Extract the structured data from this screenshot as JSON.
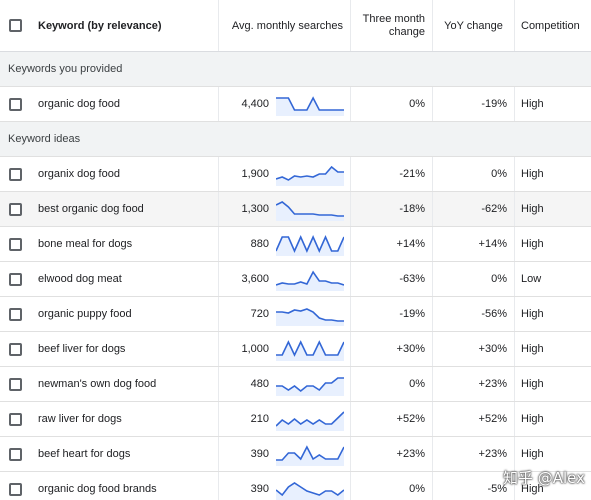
{
  "header": {
    "keyword": "Keyword (by relevance)",
    "avg": "Avg. monthly searches",
    "three_month": "Three month change",
    "yoy": "YoY change",
    "competition": "Competition"
  },
  "sections": {
    "provided": "Keywords you provided",
    "ideas": "Keyword ideas"
  },
  "provided_rows": [
    {
      "keyword": "organic dog food",
      "avg": "4,400",
      "three_month": "0%",
      "yoy": "-19%",
      "competition": "High",
      "trend": [
        0.8,
        0.8,
        0.8,
        0.2,
        0.2,
        0.2,
        0.8,
        0.2,
        0.2,
        0.2,
        0.2,
        0.2
      ]
    }
  ],
  "idea_rows": [
    {
      "keyword": "organix dog food",
      "avg": "1,900",
      "three_month": "-21%",
      "yoy": "0%",
      "competition": "High",
      "trend": [
        0.25,
        0.35,
        0.2,
        0.4,
        0.35,
        0.4,
        0.35,
        0.5,
        0.5,
        0.85,
        0.6,
        0.6
      ]
    },
    {
      "keyword": "best organic dog food",
      "avg": "1,300",
      "three_month": "-18%",
      "yoy": "-62%",
      "competition": "High",
      "trend": [
        0.7,
        0.85,
        0.6,
        0.25,
        0.25,
        0.25,
        0.25,
        0.2,
        0.2,
        0.2,
        0.15,
        0.15
      ]
    },
    {
      "keyword": "bone meal for dogs",
      "avg": "880",
      "three_month": "+14%",
      "yoy": "+14%",
      "competition": "High",
      "trend": [
        0.15,
        0.85,
        0.85,
        0.15,
        0.85,
        0.15,
        0.85,
        0.15,
        0.85,
        0.15,
        0.15,
        0.85
      ]
    },
    {
      "keyword": "elwood dog meat",
      "avg": "3,600",
      "three_month": "-63%",
      "yoy": "0%",
      "competition": "Low",
      "trend": [
        0.2,
        0.3,
        0.25,
        0.25,
        0.35,
        0.25,
        0.85,
        0.4,
        0.4,
        0.3,
        0.3,
        0.2
      ]
    },
    {
      "keyword": "organic puppy food",
      "avg": "720",
      "three_month": "-19%",
      "yoy": "-56%",
      "competition": "High",
      "trend": [
        0.6,
        0.6,
        0.55,
        0.7,
        0.65,
        0.75,
        0.6,
        0.3,
        0.2,
        0.2,
        0.15,
        0.15
      ]
    },
    {
      "keyword": "beef liver for dogs",
      "avg": "1,000",
      "three_month": "+30%",
      "yoy": "+30%",
      "competition": "High",
      "trend": [
        0.2,
        0.2,
        0.85,
        0.2,
        0.85,
        0.2,
        0.2,
        0.85,
        0.2,
        0.2,
        0.2,
        0.85
      ]
    },
    {
      "keyword": "newman's own dog food",
      "avg": "480",
      "three_month": "0%",
      "yoy": "+23%",
      "competition": "High",
      "trend": [
        0.4,
        0.4,
        0.2,
        0.4,
        0.15,
        0.4,
        0.4,
        0.2,
        0.55,
        0.55,
        0.8,
        0.8
      ]
    },
    {
      "keyword": "raw liver for dogs",
      "avg": "210",
      "three_month": "+52%",
      "yoy": "+52%",
      "competition": "High",
      "trend": [
        0.15,
        0.45,
        0.25,
        0.5,
        0.25,
        0.45,
        0.25,
        0.45,
        0.25,
        0.25,
        0.55,
        0.85
      ]
    },
    {
      "keyword": "beef heart for dogs",
      "avg": "390",
      "three_month": "+23%",
      "yoy": "+23%",
      "competition": "High",
      "trend": [
        0.2,
        0.2,
        0.55,
        0.55,
        0.25,
        0.85,
        0.25,
        0.45,
        0.25,
        0.25,
        0.25,
        0.85
      ]
    },
    {
      "keyword": "organic dog food brands",
      "avg": "390",
      "three_month": "0%",
      "yoy": "-5%",
      "competition": "High",
      "trend": [
        0.45,
        0.2,
        0.6,
        0.8,
        0.6,
        0.4,
        0.3,
        0.2,
        0.4,
        0.4,
        0.2,
        0.45
      ]
    }
  ],
  "highlighted_row": 1,
  "colors": {
    "spark_line": "#3367d6",
    "spark_fill": "#e8f0fe",
    "section_bg": "#f1f3f4"
  },
  "watermark": "知乎 @Alex"
}
